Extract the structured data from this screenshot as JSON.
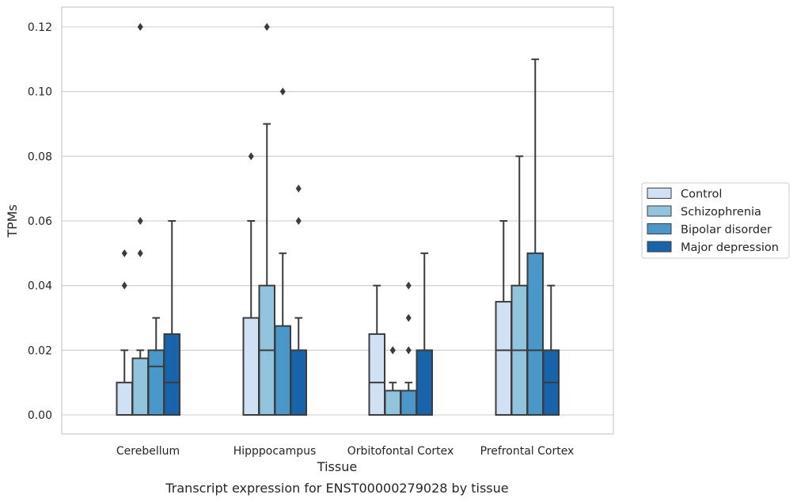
{
  "chart_data": {
    "type": "boxplot",
    "title": "",
    "caption": "Transcript expression for ENST00000279028 by tissue",
    "xlabel": "Tissue",
    "ylabel": "TPMs",
    "categories": [
      "Cerebellum",
      "Hipppocampus",
      "Orbitofontal Cortex",
      "Prefrontal Cortex"
    ],
    "ylim": [
      -0.006,
      0.1225
    ],
    "yticks": [
      0.0,
      0.02,
      0.04,
      0.06,
      0.08,
      0.1,
      0.12
    ],
    "ytick_labels": [
      "0.00",
      "0.02",
      "0.04",
      "0.06",
      "0.08",
      "0.10",
      "0.12"
    ],
    "grid": true,
    "legend_placement": "right, outside plot",
    "colors": {
      "Control": "#cfe1f2",
      "Schizophrenia": "#93c4de",
      "Bipolar disorder": "#4a98c9",
      "Major depression": "#1764ab"
    },
    "series": [
      {
        "name": "Control",
        "boxes": [
          {
            "whisker_low": 0.0,
            "q1": 0.0,
            "median": 0.0,
            "q3": 0.01,
            "whisker_high": 0.02,
            "outliers": [
              0.04,
              0.05
            ]
          },
          {
            "whisker_low": 0.0,
            "q1": 0.0,
            "median": 0.0,
            "q3": 0.03,
            "whisker_high": 0.06,
            "outliers": [
              0.08
            ]
          },
          {
            "whisker_low": 0.0,
            "q1": 0.0,
            "median": 0.01,
            "q3": 0.025,
            "whisker_high": 0.04,
            "outliers": []
          },
          {
            "whisker_low": 0.0,
            "q1": 0.0,
            "median": 0.02,
            "q3": 0.035,
            "whisker_high": 0.06,
            "outliers": []
          }
        ]
      },
      {
        "name": "Schizophrenia",
        "boxes": [
          {
            "whisker_low": 0.0,
            "q1": 0.0,
            "median": 0.0,
            "q3": 0.0175,
            "whisker_high": 0.02,
            "outliers": [
              0.05,
              0.06,
              0.12
            ]
          },
          {
            "whisker_low": 0.0,
            "q1": 0.0,
            "median": 0.02,
            "q3": 0.04,
            "whisker_high": 0.09,
            "outliers": [
              0.12
            ]
          },
          {
            "whisker_low": 0.0,
            "q1": 0.0,
            "median": 0.0,
            "q3": 0.0075,
            "whisker_high": 0.01,
            "outliers": [
              0.02,
              0.02
            ]
          },
          {
            "whisker_low": 0.0,
            "q1": 0.0,
            "median": 0.02,
            "q3": 0.04,
            "whisker_high": 0.08,
            "outliers": []
          }
        ]
      },
      {
        "name": "Bipolar disorder",
        "boxes": [
          {
            "whisker_low": 0.0,
            "q1": 0.0,
            "median": 0.015,
            "q3": 0.02,
            "whisker_high": 0.03,
            "outliers": []
          },
          {
            "whisker_low": 0.0,
            "q1": 0.0,
            "median": 0.0,
            "q3": 0.0275,
            "whisker_high": 0.05,
            "outliers": [
              0.1
            ]
          },
          {
            "whisker_low": 0.0,
            "q1": 0.0,
            "median": 0.0,
            "q3": 0.0075,
            "whisker_high": 0.01,
            "outliers": [
              0.02,
              0.03,
              0.04
            ]
          },
          {
            "whisker_low": 0.0,
            "q1": 0.0,
            "median": 0.02,
            "q3": 0.05,
            "whisker_high": 0.11,
            "outliers": []
          }
        ]
      },
      {
        "name": "Major depression",
        "boxes": [
          {
            "whisker_low": 0.0,
            "q1": 0.0,
            "median": 0.01,
            "q3": 0.025,
            "whisker_high": 0.06,
            "outliers": []
          },
          {
            "whisker_low": 0.0,
            "q1": 0.0,
            "median": 0.0,
            "q3": 0.02,
            "whisker_high": 0.03,
            "outliers": [
              0.06,
              0.07
            ]
          },
          {
            "whisker_low": 0.0,
            "q1": 0.0,
            "median": 0.0,
            "q3": 0.02,
            "whisker_high": 0.05,
            "outliers": []
          },
          {
            "whisker_low": 0.0,
            "q1": 0.0,
            "median": 0.01,
            "q3": 0.02,
            "whisker_high": 0.04,
            "outliers": []
          }
        ]
      }
    ]
  }
}
